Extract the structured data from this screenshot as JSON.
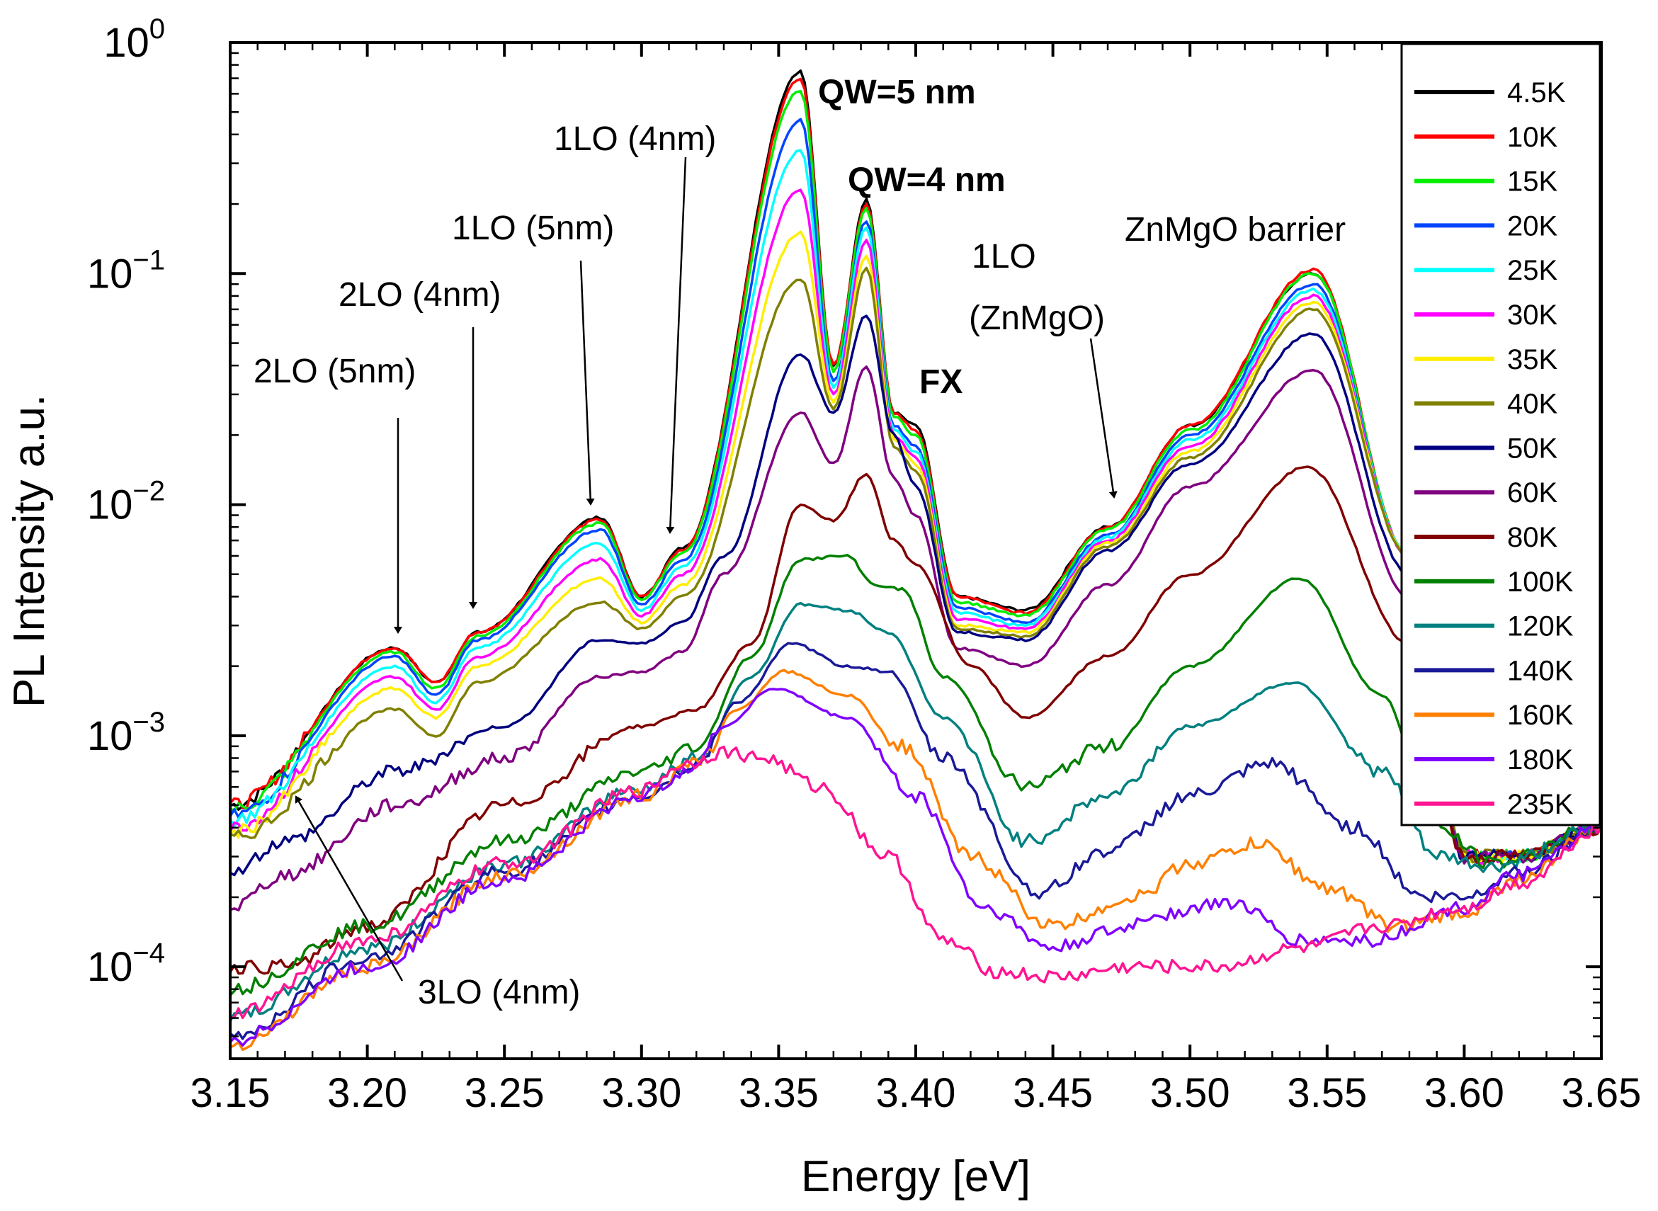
{
  "chart_data": {
    "type": "line",
    "title": "",
    "xlabel": "Energy [eV]",
    "ylabel": "PL Intensity a.u.",
    "xlim": [
      3.15,
      3.65
    ],
    "ylim": [
      4e-05,
      1.0
    ],
    "yscale": "log",
    "xticks": [
      "3.15",
      "3.20",
      "3.25",
      "3.30",
      "3.35",
      "3.40",
      "3.45",
      "3.50",
      "3.55",
      "3.60",
      "3.65"
    ],
    "yticks": [
      {
        "base": "10",
        "exp": "0",
        "value": 1.0
      },
      {
        "base": "10",
        "exp": "−1",
        "value": 0.1
      },
      {
        "base": "10",
        "exp": "−2",
        "value": 0.01
      },
      {
        "base": "10",
        "exp": "−3",
        "value": 0.001
      },
      {
        "base": "10",
        "exp": "−4",
        "value": 0.0001
      }
    ],
    "legend_position": "top-right",
    "series": [
      {
        "name": "4.5K",
        "color": "#000000",
        "x": [
          3.15,
          3.21,
          3.225,
          3.24,
          3.285,
          3.3,
          3.315,
          3.358,
          3.37,
          3.382,
          3.392,
          3.4,
          3.415,
          3.44,
          3.47,
          3.5,
          3.545,
          3.58,
          3.6,
          3.62,
          3.65
        ],
        "y": [
          0.0005,
          0.0024,
          0.0017,
          0.0028,
          0.0088,
          0.004,
          0.0065,
          0.75,
          0.04,
          0.21,
          0.025,
          0.022,
          0.004,
          0.0035,
          0.008,
          0.022,
          0.1,
          0.006,
          0.0003,
          0.0003,
          0.0004
        ]
      },
      {
        "name": "10K",
        "color": "#ff0000",
        "x": [
          3.15,
          3.21,
          3.225,
          3.24,
          3.285,
          3.3,
          3.315,
          3.358,
          3.37,
          3.382,
          3.392,
          3.4,
          3.415,
          3.44,
          3.47,
          3.5,
          3.545,
          3.58,
          3.6,
          3.62,
          3.65
        ],
        "y": [
          0.0005,
          0.0024,
          0.0017,
          0.0028,
          0.0086,
          0.004,
          0.0064,
          0.7,
          0.04,
          0.2,
          0.025,
          0.021,
          0.004,
          0.0034,
          0.008,
          0.022,
          0.104,
          0.006,
          0.0003,
          0.0003,
          0.0004
        ]
      },
      {
        "name": "15K",
        "color": "#00ee00",
        "x": [
          3.15,
          3.21,
          3.225,
          3.24,
          3.285,
          3.3,
          3.315,
          3.358,
          3.37,
          3.382,
          3.392,
          3.4,
          3.415,
          3.44,
          3.47,
          3.5,
          3.545,
          3.58,
          3.6,
          3.62,
          3.65
        ],
        "y": [
          0.00048,
          0.0023,
          0.0016,
          0.0027,
          0.0083,
          0.0039,
          0.0062,
          0.62,
          0.038,
          0.19,
          0.024,
          0.02,
          0.0038,
          0.0033,
          0.0078,
          0.021,
          0.1,
          0.006,
          0.0003,
          0.0003,
          0.0004
        ]
      },
      {
        "name": "20K",
        "color": "#0044ff",
        "x": [
          3.15,
          3.21,
          3.225,
          3.24,
          3.285,
          3.3,
          3.315,
          3.358,
          3.37,
          3.382,
          3.392,
          3.4,
          3.415,
          3.44,
          3.47,
          3.5,
          3.545,
          3.58,
          3.6,
          3.62,
          3.65
        ],
        "y": [
          0.00045,
          0.0022,
          0.0015,
          0.0026,
          0.0078,
          0.0037,
          0.0058,
          0.46,
          0.034,
          0.17,
          0.022,
          0.018,
          0.0036,
          0.0031,
          0.0074,
          0.02,
          0.09,
          0.006,
          0.0003,
          0.0003,
          0.0004
        ]
      },
      {
        "name": "25K",
        "color": "#00ffff",
        "x": [
          3.15,
          3.21,
          3.225,
          3.24,
          3.285,
          3.3,
          3.315,
          3.358,
          3.37,
          3.382,
          3.392,
          3.4,
          3.415,
          3.44,
          3.47,
          3.5,
          3.545,
          3.58,
          3.6,
          3.62,
          3.65
        ],
        "y": [
          0.00043,
          0.002,
          0.0014,
          0.0024,
          0.0068,
          0.0035,
          0.0054,
          0.34,
          0.032,
          0.16,
          0.021,
          0.017,
          0.0034,
          0.003,
          0.0072,
          0.019,
          0.085,
          0.006,
          0.0003,
          0.0003,
          0.0004
        ]
      },
      {
        "name": "30K",
        "color": "#ff00ff",
        "x": [
          3.15,
          3.21,
          3.225,
          3.24,
          3.285,
          3.3,
          3.315,
          3.358,
          3.37,
          3.382,
          3.392,
          3.4,
          3.415,
          3.44,
          3.47,
          3.5,
          3.545,
          3.58,
          3.6,
          3.62,
          3.65
        ],
        "y": [
          0.0004,
          0.0018,
          0.0013,
          0.0022,
          0.0058,
          0.0033,
          0.005,
          0.23,
          0.03,
          0.14,
          0.02,
          0.016,
          0.0032,
          0.0029,
          0.007,
          0.018,
          0.08,
          0.006,
          0.0003,
          0.0003,
          0.0004
        ]
      },
      {
        "name": "35K",
        "color": "#ffee00",
        "x": [
          3.15,
          3.21,
          3.225,
          3.24,
          3.285,
          3.3,
          3.315,
          3.358,
          3.37,
          3.382,
          3.392,
          3.4,
          3.415,
          3.44,
          3.47,
          3.5,
          3.545,
          3.58,
          3.6,
          3.62,
          3.65
        ],
        "y": [
          0.00038,
          0.0016,
          0.0012,
          0.002,
          0.0048,
          0.0031,
          0.0045,
          0.15,
          0.028,
          0.12,
          0.019,
          0.015,
          0.003,
          0.0028,
          0.0068,
          0.017,
          0.075,
          0.006,
          0.0003,
          0.0003,
          0.0004
        ]
      },
      {
        "name": "40K",
        "color": "#808000",
        "x": [
          3.15,
          3.21,
          3.225,
          3.24,
          3.285,
          3.3,
          3.315,
          3.358,
          3.37,
          3.382,
          3.392,
          3.4,
          3.415,
          3.44,
          3.47,
          3.5,
          3.545,
          3.58,
          3.6,
          3.62,
          3.65
        ],
        "y": [
          0.00036,
          0.0013,
          0.001,
          0.0017,
          0.0038,
          0.0029,
          0.004,
          0.095,
          0.026,
          0.105,
          0.018,
          0.014,
          0.0029,
          0.0027,
          0.0066,
          0.016,
          0.07,
          0.006,
          0.0003,
          0.0003,
          0.0004
        ]
      },
      {
        "name": "50K",
        "color": "#000080",
        "x": [
          3.15,
          3.17,
          3.21,
          3.25,
          3.285,
          3.3,
          3.315,
          3.33,
          3.358,
          3.37,
          3.382,
          3.392,
          3.4,
          3.415,
          3.44,
          3.47,
          3.5,
          3.545,
          3.58,
          3.6,
          3.62,
          3.65
        ],
        "y": [
          0.00026,
          0.00035,
          0.0007,
          0.0011,
          0.0026,
          0.0025,
          0.0031,
          0.006,
          0.045,
          0.025,
          0.066,
          0.02,
          0.012,
          0.0028,
          0.0026,
          0.0063,
          0.015,
          0.055,
          0.005,
          0.0003,
          0.0003,
          0.0004
        ]
      },
      {
        "name": "60K",
        "color": "#800080",
        "x": [
          3.15,
          3.17,
          3.21,
          3.25,
          3.285,
          3.3,
          3.315,
          3.33,
          3.358,
          3.37,
          3.382,
          3.392,
          3.4,
          3.415,
          3.44,
          3.47,
          3.5,
          3.545,
          3.58,
          3.6,
          3.62,
          3.65
        ],
        "y": [
          0.00018,
          0.00025,
          0.0005,
          0.0008,
          0.0018,
          0.0019,
          0.0023,
          0.005,
          0.025,
          0.015,
          0.039,
          0.013,
          0.009,
          0.0024,
          0.002,
          0.0045,
          0.012,
          0.038,
          0.004,
          0.0003,
          0.0003,
          0.0004
        ]
      },
      {
        "name": "80K",
        "color": "#800000",
        "x": [
          3.15,
          3.17,
          3.2,
          3.25,
          3.3,
          3.32,
          3.34,
          3.358,
          3.37,
          3.382,
          3.392,
          3.4,
          3.42,
          3.44,
          3.47,
          3.5,
          3.543,
          3.58,
          3.6,
          3.62,
          3.65
        ],
        "y": [
          0.0001,
          0.0001,
          0.00015,
          0.0005,
          0.0011,
          0.0013,
          0.0025,
          0.01,
          0.0085,
          0.0135,
          0.007,
          0.0055,
          0.002,
          0.0012,
          0.0022,
          0.005,
          0.0145,
          0.0025,
          0.0003,
          0.0003,
          0.0004
        ]
      },
      {
        "name": "100K",
        "color": "#008000",
        "x": [
          3.15,
          3.2,
          3.25,
          3.3,
          3.32,
          3.34,
          3.358,
          3.375,
          3.385,
          3.395,
          3.41,
          3.44,
          3.47,
          3.5,
          3.54,
          3.57,
          3.59,
          3.61,
          3.65
        ],
        "y": [
          8e-05,
          0.00015,
          0.00035,
          0.0007,
          0.0009,
          0.0022,
          0.0058,
          0.006,
          0.0045,
          0.0043,
          0.0018,
          0.0006,
          0.0009,
          0.002,
          0.0048,
          0.0015,
          0.0004,
          0.00028,
          0.0004
        ]
      },
      {
        "name": "120K",
        "color": "#008080",
        "x": [
          3.15,
          3.2,
          3.25,
          3.3,
          3.32,
          3.34,
          3.358,
          3.375,
          3.39,
          3.41,
          3.44,
          3.47,
          3.5,
          3.538,
          3.57,
          3.59,
          3.61,
          3.65
        ],
        "y": [
          6e-05,
          0.00012,
          0.00028,
          0.0006,
          0.0008,
          0.0018,
          0.0037,
          0.0035,
          0.0028,
          0.0012,
          0.00035,
          0.00055,
          0.0011,
          0.0017,
          0.0007,
          0.0003,
          0.00027,
          0.0004
        ]
      },
      {
        "name": "140K",
        "color": "#1a1a99",
        "x": [
          3.15,
          3.2,
          3.25,
          3.3,
          3.32,
          3.335,
          3.355,
          3.375,
          3.39,
          3.41,
          3.445,
          3.47,
          3.5,
          3.53,
          3.56,
          3.585,
          3.6,
          3.62,
          3.65
        ],
        "y": [
          5e-05,
          0.00011,
          0.00026,
          0.00055,
          0.00075,
          0.0014,
          0.0025,
          0.002,
          0.0019,
          0.0008,
          0.00021,
          0.00032,
          0.00055,
          0.00075,
          0.0004,
          0.0002,
          0.0002,
          0.00026,
          0.0004
        ]
      },
      {
        "name": "160K",
        "color": "#ff8000",
        "x": [
          3.15,
          3.2,
          3.25,
          3.3,
          3.32,
          3.335,
          3.352,
          3.375,
          3.395,
          3.42,
          3.45,
          3.48,
          3.5,
          3.525,
          3.55,
          3.575,
          3.6,
          3.62,
          3.65
        ],
        "y": [
          4.6e-05,
          0.0001,
          0.00025,
          0.00055,
          0.00075,
          0.0013,
          0.0019,
          0.0015,
          0.0009,
          0.0003,
          0.00015,
          0.0002,
          0.00028,
          0.00034,
          0.00022,
          0.00015,
          0.00017,
          0.00024,
          0.0004
        ]
      },
      {
        "name": "180K",
        "color": "#8000ff",
        "x": [
          3.15,
          3.2,
          3.25,
          3.3,
          3.32,
          3.33,
          3.348,
          3.375,
          3.4,
          3.425,
          3.45,
          3.47,
          3.49,
          3.515,
          3.54,
          3.565,
          3.6,
          3.62,
          3.65
        ],
        "y": [
          4.8e-05,
          0.0001,
          0.00024,
          0.00055,
          0.00075,
          0.0011,
          0.0016,
          0.0012,
          0.00055,
          0.00018,
          0.00012,
          0.00014,
          0.00017,
          0.00019,
          0.00013,
          0.00013,
          0.00018,
          0.00025,
          0.0004
        ]
      },
      {
        "name": "235K",
        "color": "#ff1493",
        "x": [
          3.15,
          3.2,
          3.25,
          3.3,
          3.315,
          3.33,
          3.345,
          3.365,
          3.39,
          3.41,
          3.43,
          3.45,
          3.48,
          3.51,
          3.54,
          3.57,
          3.6,
          3.62,
          3.65
        ],
        "y": [
          6.2e-05,
          0.00013,
          0.00028,
          0.00058,
          0.00075,
          0.00085,
          0.0008,
          0.0006,
          0.0003,
          0.00013,
          9.5e-05,
          9e-05,
          0.0001,
          0.0001,
          0.00012,
          0.00015,
          0.00018,
          0.00023,
          0.0004
        ]
      }
    ],
    "annotations": [
      {
        "text": "QW=5 nm",
        "bold": true,
        "x": 3.358,
        "y": 0.75
      },
      {
        "text": "QW=4 nm",
        "bold": true,
        "x": 3.382,
        "y": 0.21
      },
      {
        "text": "FX",
        "bold": true,
        "x": 3.402,
        "y": 0.022
      },
      {
        "text": "ZnMgO barrier",
        "bold": false,
        "x": 3.545,
        "y": 0.1
      },
      {
        "text": "1LO (4nm)",
        "bold": false,
        "x": 3.312,
        "y": 0.0075
      },
      {
        "text": "1LO (5nm)",
        "bold": false,
        "x": 3.283,
        "y": 0.0085
      },
      {
        "text": "2LO (4nm)",
        "bold": false,
        "x": 3.24,
        "y": 0.0027
      },
      {
        "text": "2LO (5nm)",
        "bold": false,
        "x": 3.212,
        "y": 0.0023
      },
      {
        "text": "1LO",
        "bold": false,
        "x": 3.473,
        "y": 0.0075
      },
      {
        "text": "(ZnMgO)",
        "bold": false,
        "x": 3.473,
        "y": 0.0075
      },
      {
        "text": "3LO (4nm)",
        "bold": false,
        "x": 3.175,
        "y": 0.0006
      }
    ]
  }
}
